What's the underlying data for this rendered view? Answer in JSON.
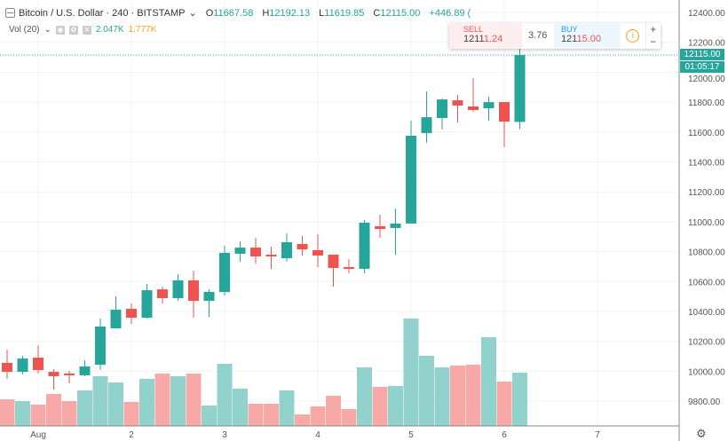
{
  "header": {
    "symbol": "Bitcoin / U.S. Dollar · 240 · BITSTAMP",
    "open_label": "O",
    "open": "11667.58",
    "high_label": "H",
    "high": "12192.13",
    "low_label": "L",
    "low": "11619.85",
    "close_label": "C",
    "close": "12115.00",
    "change": "+446.89 ("
  },
  "volume_legend": {
    "label": "Vol (20)",
    "value": "2.047K",
    "ma": "1.777K"
  },
  "trade": {
    "sell_label": "SELL",
    "sell_main": "1211",
    "sell_tail": "1.24",
    "spread": "3.76",
    "buy_label": "BUY",
    "buy_main": "121",
    "buy_tail": "15.00",
    "plus": "+",
    "minus": "−"
  },
  "price_tag": "12115.00",
  "countdown": "01:05:17",
  "colors": {
    "up": "#26a69a",
    "down": "#ef5350",
    "vol_up": "#92d2cc",
    "vol_down": "#f7a9a7"
  },
  "chart_data": {
    "type": "candlestick",
    "ylim": [
      9700,
      12450
    ],
    "y_ticks": [
      "12400.00",
      "12200.00",
      "12000.00",
      "11800.00",
      "11600.00",
      "11400.00",
      "11200.00",
      "11000.00",
      "10800.00",
      "10600.00",
      "10400.00",
      "10200.00",
      "10000.00",
      "9800.00"
    ],
    "x_ticks": [
      {
        "label": "Aug",
        "index": 2
      },
      {
        "label": "2",
        "index": 8
      },
      {
        "label": "3",
        "index": 14
      },
      {
        "label": "4",
        "index": 20
      },
      {
        "label": "5",
        "index": 26
      },
      {
        "label": "6",
        "index": 32
      },
      {
        "label": "7",
        "index": 38
      }
    ],
    "candles": [
      [
        10056,
        10145,
        9949,
        9996
      ],
      [
        9996,
        10103,
        9979,
        10085
      ],
      [
        10091,
        10174,
        9985,
        10008
      ],
      [
        9996,
        10014,
        9878,
        9967
      ],
      [
        9985,
        10003,
        9919,
        9973
      ],
      [
        9973,
        10074,
        9967,
        10032
      ],
      [
        10044,
        10353,
        10008,
        10299
      ],
      [
        10287,
        10501,
        10287,
        10412
      ],
      [
        10418,
        10453,
        10317,
        10358
      ],
      [
        10358,
        10584,
        10352,
        10542
      ],
      [
        10548,
        10566,
        10453,
        10489
      ],
      [
        10489,
        10649,
        10471,
        10608
      ],
      [
        10608,
        10673,
        10358,
        10471
      ],
      [
        10471,
        10548,
        10364,
        10531
      ],
      [
        10530,
        10839,
        10507,
        10792
      ],
      [
        10786,
        10869,
        10733,
        10827
      ],
      [
        10827,
        10893,
        10720,
        10768
      ],
      [
        10780,
        10833,
        10685,
        10768
      ],
      [
        10756,
        10922,
        10733,
        10863
      ],
      [
        10851,
        10905,
        10774,
        10815
      ],
      [
        10810,
        10916,
        10697,
        10774
      ],
      [
        10780,
        10780,
        10566,
        10691
      ],
      [
        10697,
        10750,
        10655,
        10685
      ],
      [
        10685,
        11011,
        10655,
        10994
      ],
      [
        10970,
        11047,
        10893,
        10952
      ],
      [
        10958,
        11088,
        10780,
        10988
      ],
      [
        10988,
        11676,
        10988,
        11575
      ],
      [
        11593,
        11872,
        11528,
        11699
      ],
      [
        11694,
        11824,
        11617,
        11818
      ],
      [
        11812,
        11848,
        11664,
        11777
      ],
      [
        11771,
        11960,
        11735,
        11747
      ],
      [
        11759,
        11836,
        11676,
        11800
      ],
      [
        11800,
        11800,
        11498,
        11670
      ],
      [
        11667.58,
        12192.13,
        11619.85,
        12115
      ]
    ],
    "volume": [
      1023,
      955,
      819,
      1228,
      955,
      1364,
      1910,
      1671,
      921,
      1808,
      2013,
      1910,
      2013,
      784,
      2388,
      1433,
      853,
      853,
      1364,
      443,
      750,
      1160,
      648,
      2251,
      1501,
      1535,
      4129,
      2695,
      2251,
      2320,
      2354,
      3411,
      1706,
      2047
    ]
  }
}
